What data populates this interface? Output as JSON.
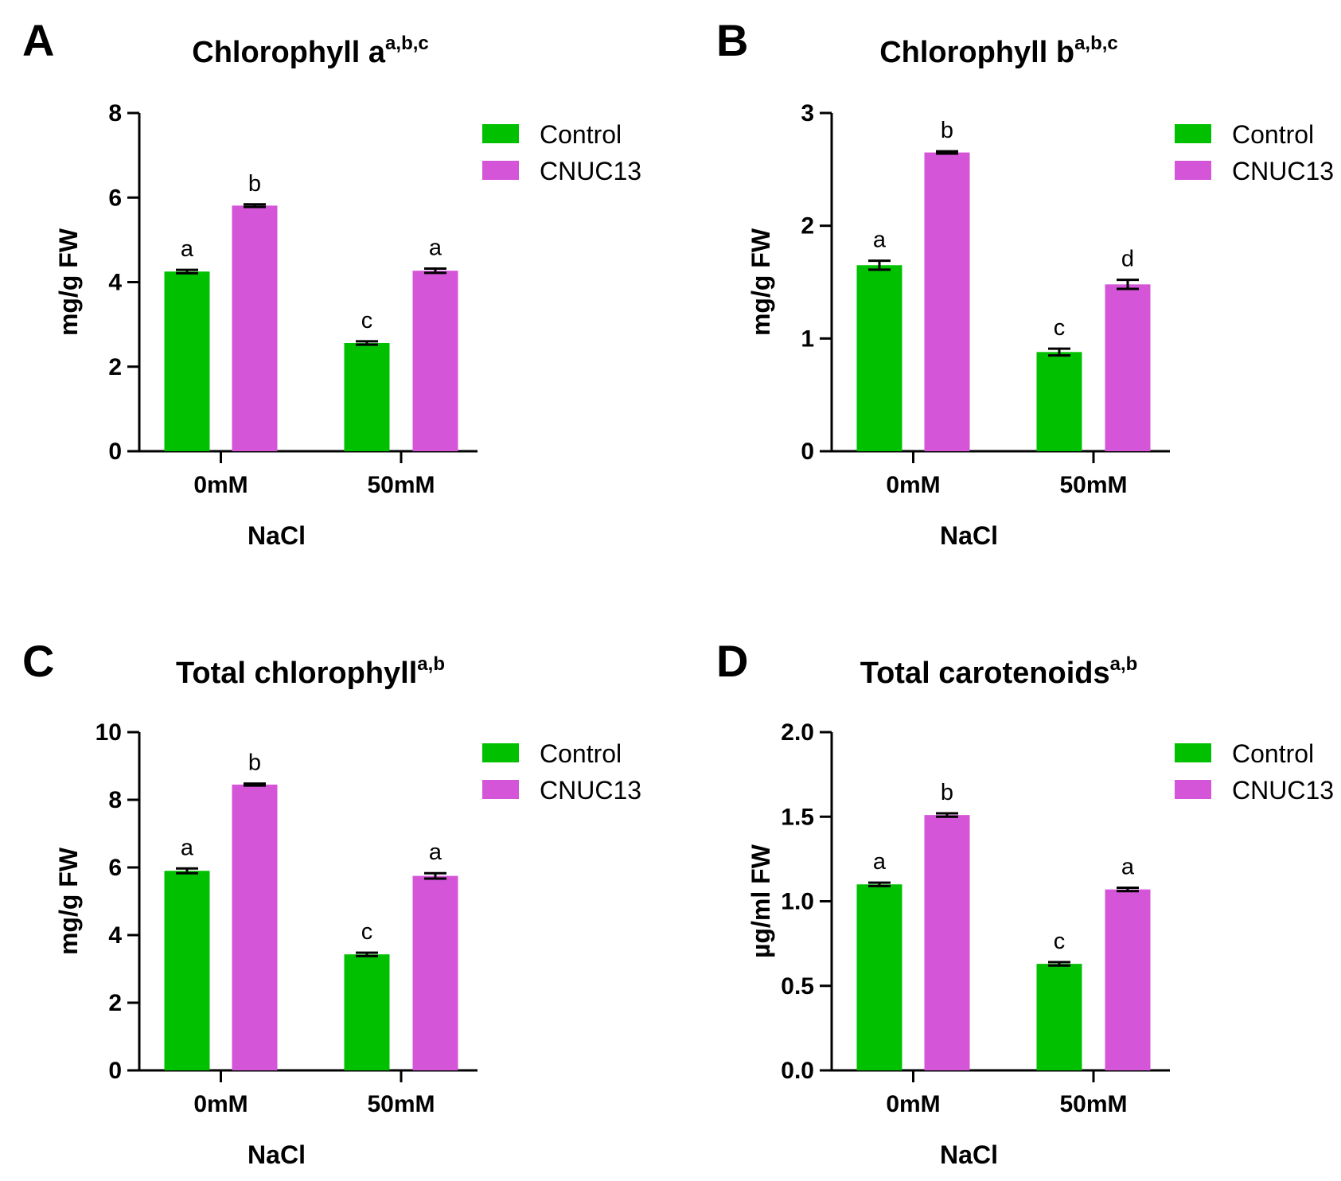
{
  "colors": {
    "control": "#00c000",
    "cnuc13": "#d455d8",
    "axis": "#000000"
  },
  "chart_data": [
    {
      "type": "bar",
      "panel": "A",
      "title": "Chlorophyll a",
      "title_sup": "a,b,c",
      "xlabel": "NaCl",
      "ylabel": "mg/g FW",
      "categories": [
        "0mM",
        "50mM"
      ],
      "ylim": [
        0,
        8
      ],
      "yticks": [
        0,
        2,
        4,
        6,
        8
      ],
      "ytick_labels": [
        "0",
        "2",
        "4",
        "6",
        "8"
      ],
      "series": [
        {
          "name": "Control",
          "values": [
            4.25,
            2.56
          ],
          "errors": [
            0.04,
            0.04
          ],
          "letters": [
            "a",
            "c"
          ]
        },
        {
          "name": "CNUC13",
          "values": [
            5.81,
            4.27
          ],
          "errors": [
            0.03,
            0.05
          ],
          "letters": [
            "b",
            "a"
          ]
        }
      ],
      "legend": "top-right"
    },
    {
      "type": "bar",
      "panel": "B",
      "title": "Chlorophyll b",
      "title_sup": "a,b,c",
      "xlabel": "NaCl",
      "ylabel": "mg/g FW",
      "categories": [
        "0mM",
        "50mM"
      ],
      "ylim": [
        0,
        3
      ],
      "yticks": [
        0,
        1,
        2,
        3
      ],
      "ytick_labels": [
        "0",
        "1",
        "2",
        "3"
      ],
      "series": [
        {
          "name": "Control",
          "values": [
            1.65,
            0.88
          ],
          "errors": [
            0.04,
            0.03
          ],
          "letters": [
            "a",
            "c"
          ]
        },
        {
          "name": "CNUC13",
          "values": [
            2.65,
            1.48
          ],
          "errors": [
            0.01,
            0.04
          ],
          "letters": [
            "b",
            "d"
          ]
        }
      ],
      "legend": "top-right"
    },
    {
      "type": "bar",
      "panel": "C",
      "title": "Total chlorophyll",
      "title_sup": "a,b",
      "xlabel": "NaCl",
      "ylabel": "mg/g FW",
      "categories": [
        "0mM",
        "50mM"
      ],
      "ylim": [
        0,
        10
      ],
      "yticks": [
        0,
        2,
        4,
        6,
        8,
        10
      ],
      "ytick_labels": [
        "0",
        "2",
        "4",
        "6",
        "8",
        "10"
      ],
      "series": [
        {
          "name": "Control",
          "values": [
            5.9,
            3.43
          ],
          "errors": [
            0.07,
            0.05
          ],
          "letters": [
            "a",
            "c"
          ]
        },
        {
          "name": "CNUC13",
          "values": [
            8.45,
            5.75
          ],
          "errors": [
            0.03,
            0.08
          ],
          "letters": [
            "b",
            "a"
          ]
        }
      ],
      "legend": "top-right"
    },
    {
      "type": "bar",
      "panel": "D",
      "title": "Total carotenoids",
      "title_sup": "a,b",
      "xlabel": "NaCl",
      "ylabel": "µg/ml FW",
      "categories": [
        "0mM",
        "50mM"
      ],
      "ylim": [
        0,
        2.0
      ],
      "yticks": [
        0,
        0.5,
        1.0,
        1.5,
        2.0
      ],
      "ytick_labels": [
        "0.0",
        "0.5",
        "1.0",
        "1.5",
        "2.0"
      ],
      "series": [
        {
          "name": "Control",
          "values": [
            1.1,
            0.63
          ],
          "errors": [
            0.01,
            0.01
          ],
          "letters": [
            "a",
            "c"
          ]
        },
        {
          "name": "CNUC13",
          "values": [
            1.51,
            1.07
          ],
          "errors": [
            0.01,
            0.01
          ],
          "letters": [
            "b",
            "a"
          ]
        }
      ],
      "legend": "top-right"
    }
  ]
}
